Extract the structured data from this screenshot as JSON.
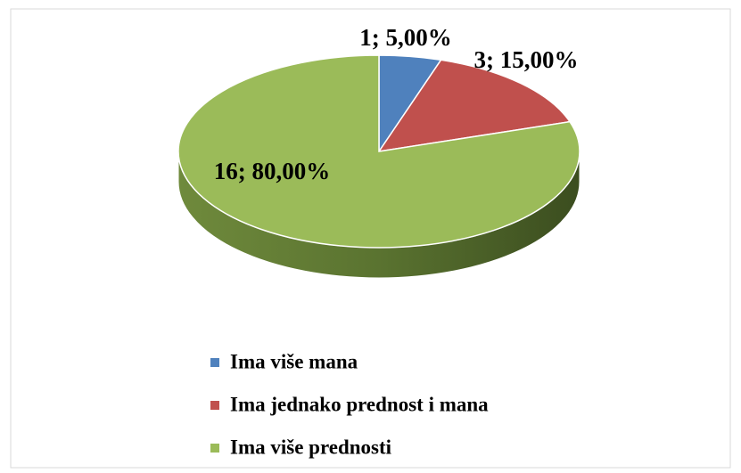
{
  "chart_data": {
    "type": "pie",
    "categories": [
      "Ima više mana",
      "Ima jednako prednost i mana",
      "Ima više prednosti"
    ],
    "values": [
      1,
      3,
      16
    ],
    "value_labels": [
      "1; 5,00%",
      "3; 15,00%",
      "16; 80,00%"
    ],
    "colors": [
      "#4f81bd",
      "#c0504d",
      "#9bbb59"
    ],
    "legend": "bottom"
  }
}
